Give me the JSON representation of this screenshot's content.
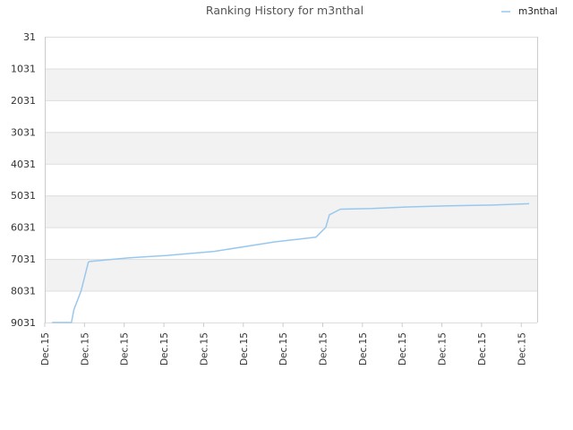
{
  "chart_data": {
    "type": "line",
    "title": "Ranking History for m3nthal",
    "xlabel": "",
    "ylabel": "",
    "y_inverted": true,
    "ylim": [
      31,
      9031
    ],
    "yticks": [
      "31",
      "1031",
      "2031",
      "3031",
      "4031",
      "5031",
      "6031",
      "7031",
      "8031",
      "9031"
    ],
    "xticks": [
      "Dec.15",
      "Dec.15",
      "Dec.15",
      "Dec.15",
      "Dec.15",
      "Dec.15",
      "Dec.15",
      "Dec.15",
      "Dec.15",
      "Dec.15",
      "Dec.15",
      "Dec.15",
      "Dec.15"
    ],
    "grid": true,
    "legend_position": "top-right",
    "colors": {
      "series": "#99c8ee",
      "band": "#f2f2f2",
      "grid": "#dddddd",
      "axis": "#cccccc"
    },
    "series": [
      {
        "name": "m3nthal",
        "x": [
          0.3,
          1.1,
          1.2,
          1.5,
          1.8,
          1.85,
          2.5,
          3.5,
          5,
          7,
          9.5,
          11.2,
          11.6,
          11.75,
          12.2,
          13.5,
          15,
          16.5,
          18.5,
          20
        ],
        "y": [
          9031,
          9031,
          8631,
          8031,
          7131,
          7111,
          7061,
          6991,
          6921,
          6791,
          6491,
          6341,
          6031,
          5641,
          5461,
          5441,
          5391,
          5361,
          5331,
          5291
        ]
      }
    ]
  }
}
